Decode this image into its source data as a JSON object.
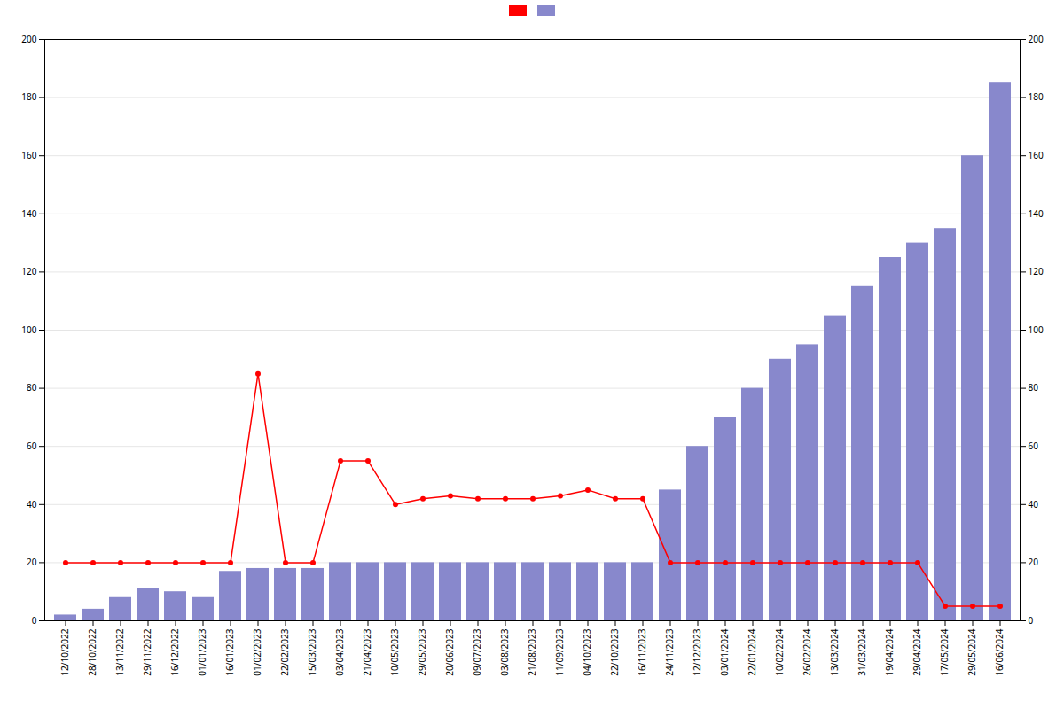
{
  "chart_data": {
    "type": "bar",
    "categories": [
      "12/10/2022",
      "28/10/2022",
      "13/11/2022",
      "29/11/2022",
      "16/12/2022",
      "01/01/2023",
      "16/01/2023",
      "01/02/2023",
      "22/02/2023",
      "15/03/2023",
      "03/04/2023",
      "21/04/2023",
      "10/05/2023",
      "29/05/2023",
      "20/06/2023",
      "09/07/2023",
      "03/08/2023",
      "21/08/2023",
      "11/09/2023",
      "04/10/2023",
      "22/10/2023",
      "16/11/2023",
      "24/11/2023",
      "12/12/2023",
      "03/01/2024",
      "22/01/2024",
      "10/02/2024",
      "26/02/2024",
      "13/03/2024",
      "31/03/2024",
      "19/04/2024",
      "29/04/2024",
      "17/05/2024",
      "29/05/2024",
      "16/06/2024"
    ],
    "series": [
      {
        "type": "bar",
        "color": "#8888cc",
        "values": [
          2,
          4,
          8,
          11,
          10,
          8,
          17,
          18,
          18,
          18,
          20,
          20,
          20,
          20,
          20,
          20,
          20,
          20,
          20,
          20,
          20,
          20,
          45,
          60,
          70,
          80,
          90,
          95,
          105,
          115,
          125,
          130,
          135,
          160,
          185
        ]
      },
      {
        "type": "line",
        "color": "#ff0000",
        "marker": "circle",
        "values": [
          20,
          20,
          20,
          20,
          20,
          20,
          20,
          85,
          20,
          20,
          55,
          55,
          40,
          42,
          43,
          42,
          42,
          42,
          43,
          45,
          42,
          42,
          20,
          20,
          20,
          20,
          20,
          20,
          20,
          20,
          20,
          20,
          5,
          5,
          5
        ]
      }
    ],
    "ylim": [
      0,
      200
    ],
    "yticks": [
      0,
      20,
      40,
      60,
      80,
      100,
      120,
      140,
      160,
      180,
      200
    ],
    "y2lim": [
      0,
      200
    ],
    "y2ticks": [
      0,
      20,
      40,
      60,
      80,
      100,
      120,
      140,
      160,
      180,
      200
    ],
    "grid": true,
    "legend": "top"
  }
}
